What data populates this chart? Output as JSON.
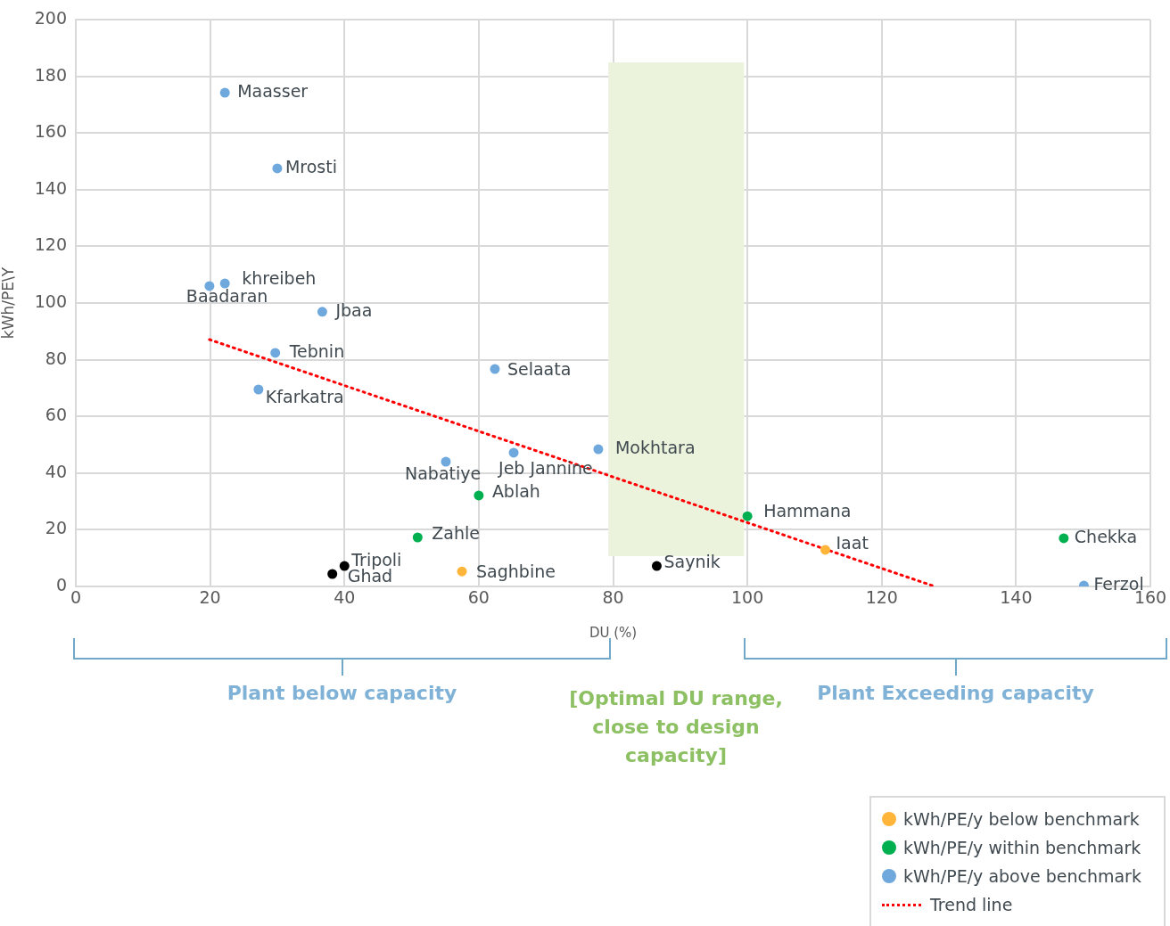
{
  "chart_data": {
    "type": "scatter",
    "xlabel": "DU (%)",
    "ylabel": "kWh/PE\\Y",
    "xlim": [
      0,
      160
    ],
    "xticks": [
      0,
      20,
      40,
      60,
      80,
      100,
      120,
      140,
      160
    ],
    "ylim": [
      0,
      200
    ],
    "yticks": [
      0,
      20,
      40,
      60,
      80,
      100,
      120,
      140,
      160,
      180,
      200
    ],
    "grid": true,
    "legend": "bottom right",
    "marker": "circle",
    "bands": [
      {
        "axis": "x",
        "from": 79.3,
        "to": 99.5,
        "color": "#ebf3dc"
      }
    ],
    "series": [
      {
        "name": "kWh/PE/y below benchmark",
        "color": "#ffb53a",
        "x": [
          111.6,
          57.5
        ],
        "values": [
          12.9,
          5.3
        ]
      },
      {
        "name": "kWh/PE/y within benchmark",
        "color": "#00b050",
        "x": [
          60.0,
          50.9,
          100.0,
          147.1
        ],
        "values": [
          32.1,
          17.3,
          24.8,
          17.0
        ]
      },
      {
        "name": "kWh/PE/y above benchmark",
        "color": "#6fa8dc",
        "x": [
          22.2,
          30.0,
          22.2,
          19.9,
          36.7,
          29.7,
          27.2,
          62.4,
          77.8,
          65.2,
          55.1,
          150.1
        ],
        "values": [
          174.2,
          147.5,
          106.9,
          106.0,
          96.9,
          82.4,
          69.5,
          76.7,
          48.4,
          47.2,
          44.0,
          0.3
        ]
      },
      {
        "color": "#000000",
        "x": [
          86.5,
          40.0,
          38.2
        ],
        "values": [
          7.2,
          7.2,
          4.4
        ]
      },
      {
        "name": "Trend line",
        "type": "line",
        "line_style": "dotted",
        "marker": "none",
        "color": "#ff0000",
        "x": [
          19.9,
          127.9
        ],
        "values": [
          87.1,
          0
        ]
      }
    ],
    "annotations": [
      {
        "text": "Iaat",
        "x": 111.6,
        "y": 12.9
      },
      {
        "text": "Saghbine",
        "x": 57.5,
        "y": 5.3
      },
      {
        "text": "Ablah",
        "x": 60.0,
        "y": 32.1
      },
      {
        "text": "Zahle",
        "x": 50.9,
        "y": 17.3
      },
      {
        "text": "Hammana",
        "x": 100.0,
        "y": 24.8
      },
      {
        "text": "Chekka",
        "x": 147.1,
        "y": 17.0
      },
      {
        "text": "Maasser",
        "x": 22.2,
        "y": 174.2
      },
      {
        "text": "Mrosti",
        "x": 30.0,
        "y": 147.5
      },
      {
        "text": "khreibeh",
        "x": 22.2,
        "y": 106.9
      },
      {
        "text": "Baadaran",
        "x": 19.9,
        "y": 106.0
      },
      {
        "text": "Jbaa",
        "x": 36.7,
        "y": 96.9
      },
      {
        "text": "Tebnin",
        "x": 29.7,
        "y": 82.4
      },
      {
        "text": "Kfarkatra",
        "x": 27.2,
        "y": 69.5
      },
      {
        "text": "Selaata",
        "x": 62.4,
        "y": 76.7
      },
      {
        "text": "Mokhtara",
        "x": 77.8,
        "y": 48.4
      },
      {
        "text": "Jeb Jannine",
        "x": 65.2,
        "y": 47.2
      },
      {
        "text": "Nabatiye",
        "x": 55.1,
        "y": 44.0
      },
      {
        "text": "Ferzol",
        "x": 150.1,
        "y": 0.3
      },
      {
        "text": "Saynik",
        "x": 86.5,
        "y": 7.2
      },
      {
        "text": "Tripoli",
        "x": 40.0,
        "y": 7.2
      },
      {
        "text": "Ghad",
        "x": 38.2,
        "y": 4.4
      },
      "Plant below capacity",
      "[Optimal DU range, close to design capacity]",
      "Plant Exceeding capacity"
    ]
  }
}
